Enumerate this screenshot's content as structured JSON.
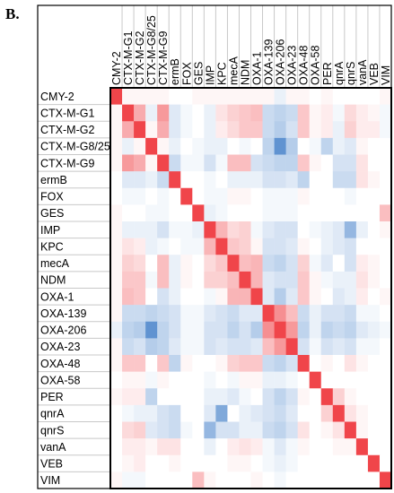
{
  "panel_label": "B.",
  "chart_data": {
    "type": "heatmap",
    "row_labels": [
      "CMY-2",
      "CTX-M-G1",
      "CTX-M-G2",
      "CTX-M-G8/25",
      "CTX-M-G9",
      "ermB",
      "FOX",
      "GES",
      "IMP",
      "KPC",
      "mecA",
      "NDM",
      "OXA-1",
      "OXA-139",
      "OXA-206",
      "OXA-23",
      "OXA-48",
      "OXA-58",
      "PER",
      "qnrA",
      "qnrS",
      "vanA",
      "VEB",
      "VIM"
    ],
    "col_labels": [
      "CMY-2",
      "CTX-M-G1",
      "CTX-M-G2",
      "CTX-M-G8/25",
      "CTX-M-G9",
      "ermB",
      "FOX",
      "GES",
      "IMP",
      "KPC",
      "mecA",
      "NDM",
      "OXA-1",
      "OXA-139",
      "OXA-206",
      "OXA-23",
      "OXA-48",
      "OXA-58",
      "PER",
      "qnrA",
      "qnrS",
      "vanA",
      "VEB",
      "VIM"
    ],
    "values": [
      [
        1.0,
        0.05,
        0.05,
        0.05,
        0.05,
        0.0,
        0.0,
        0.05,
        0.05,
        0.05,
        0.05,
        0.05,
        0.05,
        0.05,
        -0.1,
        0.05,
        0.05,
        0.0,
        0.05,
        0.0,
        0.0,
        0.0,
        0.0,
        0.05
      ],
      [
        0.05,
        1.0,
        0.45,
        -0.1,
        0.55,
        -0.15,
        -0.05,
        0.0,
        -0.1,
        0.15,
        0.25,
        0.3,
        0.35,
        -0.25,
        -0.3,
        -0.25,
        0.3,
        0.05,
        0.1,
        -0.05,
        0.2,
        0.1,
        0.05,
        -0.05
      ],
      [
        0.05,
        0.45,
        1.0,
        0.05,
        0.45,
        -0.15,
        -0.05,
        0.0,
        -0.1,
        0.1,
        0.2,
        0.3,
        0.3,
        -0.25,
        -0.35,
        -0.2,
        0.3,
        0.05,
        0.1,
        -0.1,
        0.25,
        0.1,
        0.1,
        -0.05
      ],
      [
        0.05,
        -0.1,
        0.05,
        1.0,
        0.05,
        -0.1,
        0.0,
        -0.05,
        -0.1,
        -0.1,
        0.0,
        -0.05,
        0.0,
        -0.3,
        -0.75,
        -0.35,
        0.0,
        -0.05,
        -0.3,
        -0.1,
        -0.15,
        0.05,
        0.0,
        0.0
      ],
      [
        0.05,
        0.55,
        0.45,
        0.05,
        1.0,
        -0.25,
        -0.05,
        -0.05,
        -0.2,
        -0.05,
        0.35,
        0.35,
        -0.2,
        -0.25,
        -0.3,
        -0.3,
        0.3,
        0.05,
        0.0,
        -0.2,
        -0.2,
        0.15,
        0.0,
        0.0
      ],
      [
        0.0,
        -0.15,
        -0.15,
        -0.1,
        -0.25,
        1.0,
        0.0,
        0.0,
        -0.05,
        0.0,
        -0.1,
        -0.1,
        -0.1,
        -0.2,
        -0.2,
        -0.15,
        -0.3,
        0.0,
        0.0,
        -0.25,
        -0.25,
        0.15,
        0.05,
        0.0
      ],
      [
        0.0,
        -0.05,
        -0.05,
        0.0,
        -0.05,
        0.0,
        1.0,
        0.0,
        -0.05,
        -0.05,
        0.05,
        0.05,
        0.0,
        -0.05,
        -0.05,
        -0.05,
        0.05,
        0.0,
        0.0,
        0.0,
        -0.05,
        0.0,
        0.0,
        0.0
      ],
      [
        0.05,
        0.0,
        0.0,
        -0.05,
        -0.05,
        0.0,
        0.0,
        1.0,
        -0.1,
        -0.05,
        0.0,
        0.0,
        0.0,
        -0.05,
        -0.05,
        -0.05,
        0.0,
        0.0,
        0.0,
        0.0,
        0.0,
        0.0,
        0.0,
        0.35
      ],
      [
        0.05,
        -0.1,
        -0.1,
        -0.1,
        -0.2,
        -0.05,
        -0.05,
        -0.1,
        1.0,
        0.4,
        0.2,
        0.25,
        -0.05,
        -0.15,
        -0.2,
        -0.2,
        0.0,
        -0.05,
        -0.1,
        -0.15,
        -0.5,
        -0.1,
        0.0,
        0.05
      ],
      [
        0.05,
        0.15,
        0.1,
        -0.1,
        -0.05,
        0.0,
        -0.05,
        -0.05,
        0.4,
        1.0,
        0.3,
        0.25,
        0.05,
        -0.2,
        -0.2,
        -0.15,
        0.05,
        0.0,
        -0.1,
        -0.15,
        -0.2,
        0.0,
        0.0,
        0.0
      ],
      [
        0.05,
        0.25,
        0.2,
        0.0,
        0.35,
        -0.1,
        0.05,
        0.0,
        0.2,
        0.3,
        1.0,
        0.35,
        0.4,
        -0.25,
        -0.3,
        -0.2,
        0.25,
        -0.05,
        -0.15,
        0.0,
        -0.2,
        0.1,
        0.05,
        0.0
      ],
      [
        0.05,
        0.3,
        0.3,
        -0.05,
        0.35,
        -0.1,
        0.05,
        0.0,
        0.25,
        0.25,
        0.35,
        1.0,
        0.4,
        -0.15,
        -0.2,
        -0.2,
        0.3,
        0.05,
        -0.05,
        -0.1,
        -0.1,
        0.15,
        0.05,
        0.0
      ],
      [
        0.05,
        0.35,
        0.3,
        0.0,
        -0.2,
        -0.1,
        0.0,
        0.0,
        -0.05,
        0.05,
        0.4,
        0.4,
        1.0,
        -0.15,
        -0.35,
        -0.15,
        0.3,
        0.05,
        0.0,
        -0.15,
        -0.1,
        0.1,
        0.0,
        0.05
      ],
      [
        0.05,
        -0.25,
        -0.25,
        -0.3,
        -0.25,
        -0.2,
        -0.05,
        -0.05,
        -0.15,
        -0.2,
        -0.25,
        -0.15,
        -0.15,
        1.0,
        0.6,
        0.35,
        -0.25,
        -0.1,
        -0.2,
        -0.2,
        -0.25,
        -0.05,
        -0.05,
        0.0
      ],
      [
        -0.1,
        -0.3,
        -0.35,
        -0.75,
        -0.3,
        -0.2,
        -0.05,
        -0.05,
        -0.2,
        -0.2,
        -0.3,
        -0.2,
        -0.35,
        0.6,
        1.0,
        0.55,
        -0.3,
        -0.1,
        -0.3,
        -0.25,
        -0.3,
        -0.15,
        -0.1,
        -0.05
      ],
      [
        0.05,
        -0.25,
        -0.2,
        -0.35,
        -0.3,
        -0.15,
        -0.05,
        -0.05,
        -0.2,
        -0.15,
        -0.2,
        -0.2,
        -0.15,
        0.35,
        0.55,
        1.0,
        -0.2,
        -0.05,
        -0.2,
        -0.15,
        -0.2,
        -0.05,
        -0.05,
        0.0
      ],
      [
        0.05,
        0.3,
        0.3,
        0.0,
        0.3,
        -0.3,
        0.05,
        0.0,
        0.0,
        0.05,
        0.25,
        0.3,
        0.3,
        -0.25,
        -0.3,
        -0.2,
        1.0,
        0.0,
        0.05,
        0.0,
        0.15,
        0.05,
        0.0,
        0.0
      ],
      [
        0.0,
        0.05,
        0.05,
        -0.05,
        0.05,
        0.0,
        0.0,
        0.0,
        -0.05,
        0.0,
        -0.05,
        0.05,
        0.05,
        -0.1,
        -0.1,
        -0.05,
        0.0,
        1.0,
        0.0,
        0.0,
        0.0,
        0.0,
        0.0,
        0.0
      ],
      [
        0.05,
        0.1,
        0.1,
        -0.3,
        0.0,
        0.0,
        0.0,
        0.0,
        -0.1,
        -0.1,
        -0.15,
        -0.05,
        0.0,
        -0.2,
        -0.3,
        -0.2,
        0.05,
        0.0,
        1.0,
        0.25,
        0.05,
        0.0,
        0.0,
        0.0
      ],
      [
        0.0,
        -0.05,
        -0.1,
        -0.1,
        -0.2,
        -0.25,
        0.0,
        0.0,
        -0.15,
        -0.6,
        0.0,
        -0.1,
        -0.15,
        -0.2,
        -0.25,
        -0.15,
        0.0,
        0.0,
        0.25,
        1.0,
        0.15,
        0.05,
        0.0,
        0.0
      ],
      [
        0.0,
        0.2,
        0.25,
        -0.15,
        -0.2,
        -0.25,
        -0.05,
        0.0,
        -0.5,
        -0.2,
        -0.2,
        -0.1,
        -0.1,
        -0.25,
        -0.3,
        -0.2,
        0.15,
        0.0,
        0.05,
        0.15,
        1.0,
        0.05,
        0.0,
        0.0
      ],
      [
        0.0,
        0.1,
        0.1,
        0.05,
        0.15,
        0.15,
        0.0,
        0.0,
        -0.1,
        0.0,
        0.1,
        0.15,
        0.1,
        -0.05,
        -0.15,
        -0.05,
        0.05,
        0.0,
        0.0,
        0.05,
        0.05,
        1.0,
        0.0,
        0.0
      ],
      [
        0.0,
        0.05,
        0.1,
        0.0,
        0.0,
        0.05,
        0.0,
        0.0,
        0.0,
        0.0,
        0.05,
        0.05,
        0.0,
        -0.05,
        -0.1,
        -0.05,
        0.0,
        0.0,
        0.0,
        0.0,
        0.0,
        0.0,
        1.0,
        0.0
      ],
      [
        0.05,
        -0.05,
        -0.05,
        0.0,
        0.0,
        0.0,
        0.0,
        0.35,
        0.05,
        0.0,
        0.0,
        0.0,
        0.05,
        0.0,
        -0.05,
        0.0,
        0.0,
        0.0,
        0.0,
        0.0,
        0.0,
        0.0,
        0.0,
        1.0
      ]
    ],
    "color_scale": {
      "negative": "#2b6fc2",
      "neutral": "#ffffff",
      "positive": "#f0454a"
    },
    "vlim": [
      -1,
      1
    ],
    "title": "",
    "xlabel": "",
    "ylabel": ""
  }
}
